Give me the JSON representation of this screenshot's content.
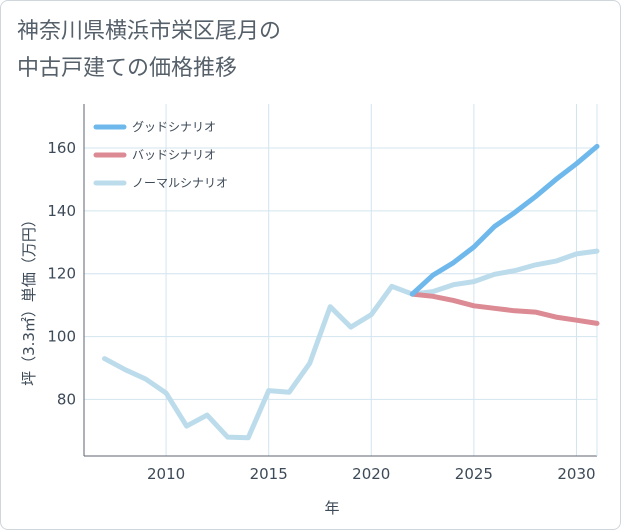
{
  "title_lines": [
    "神奈川県横浜市栄区尾月の",
    "中古戸建ての価格推移"
  ],
  "chart_data": {
    "type": "line",
    "title": "神奈川県横浜市栄区尾月の中古戸建ての価格推移",
    "xlabel": "年",
    "ylabel": "坪（3.3㎡）単価（万円）",
    "xlim": [
      2006,
      2031
    ],
    "ylim": [
      62,
      174
    ],
    "x_ticks": [
      2010,
      2015,
      2020,
      2025,
      2030
    ],
    "y_ticks": [
      80,
      100,
      120,
      140,
      160
    ],
    "grid": true,
    "legend_position": "top-left",
    "series": [
      {
        "name": "グッドシナリオ",
        "color": "#6fb8ec",
        "x": [
          2022,
          2023,
          2024,
          2025,
          2026,
          2027,
          2028,
          2029,
          2030,
          2031
        ],
        "y": [
          113.5,
          119.5,
          123.5,
          128.5,
          135,
          139.5,
          144.5,
          150,
          155,
          160.5
        ]
      },
      {
        "name": "バッドシナリオ",
        "color": "#dc8a93",
        "x": [
          2022,
          2023,
          2024,
          2025,
          2026,
          2027,
          2028,
          2029,
          2030,
          2031
        ],
        "y": [
          113.5,
          112.8,
          111.5,
          109.8,
          109,
          108.2,
          107.8,
          106.2,
          105.2,
          104.2
        ]
      },
      {
        "name": "ノーマルシナリオ",
        "color": "#bcdcec",
        "x": [
          2007,
          2008,
          2009,
          2010,
          2011,
          2012,
          2013,
          2014,
          2015,
          2016,
          2017,
          2018,
          2019,
          2020,
          2021,
          2022,
          2023,
          2024,
          2025,
          2026,
          2027,
          2028,
          2029,
          2030,
          2031
        ],
        "y": [
          93,
          89.5,
          86.5,
          82,
          71.5,
          75,
          68,
          67.8,
          82.8,
          82.3,
          91.5,
          109.5,
          103,
          107,
          116,
          113.5,
          114.3,
          116.5,
          117.5,
          119.8,
          121,
          122.8,
          124,
          126.3,
          127.2
        ]
      }
    ]
  }
}
